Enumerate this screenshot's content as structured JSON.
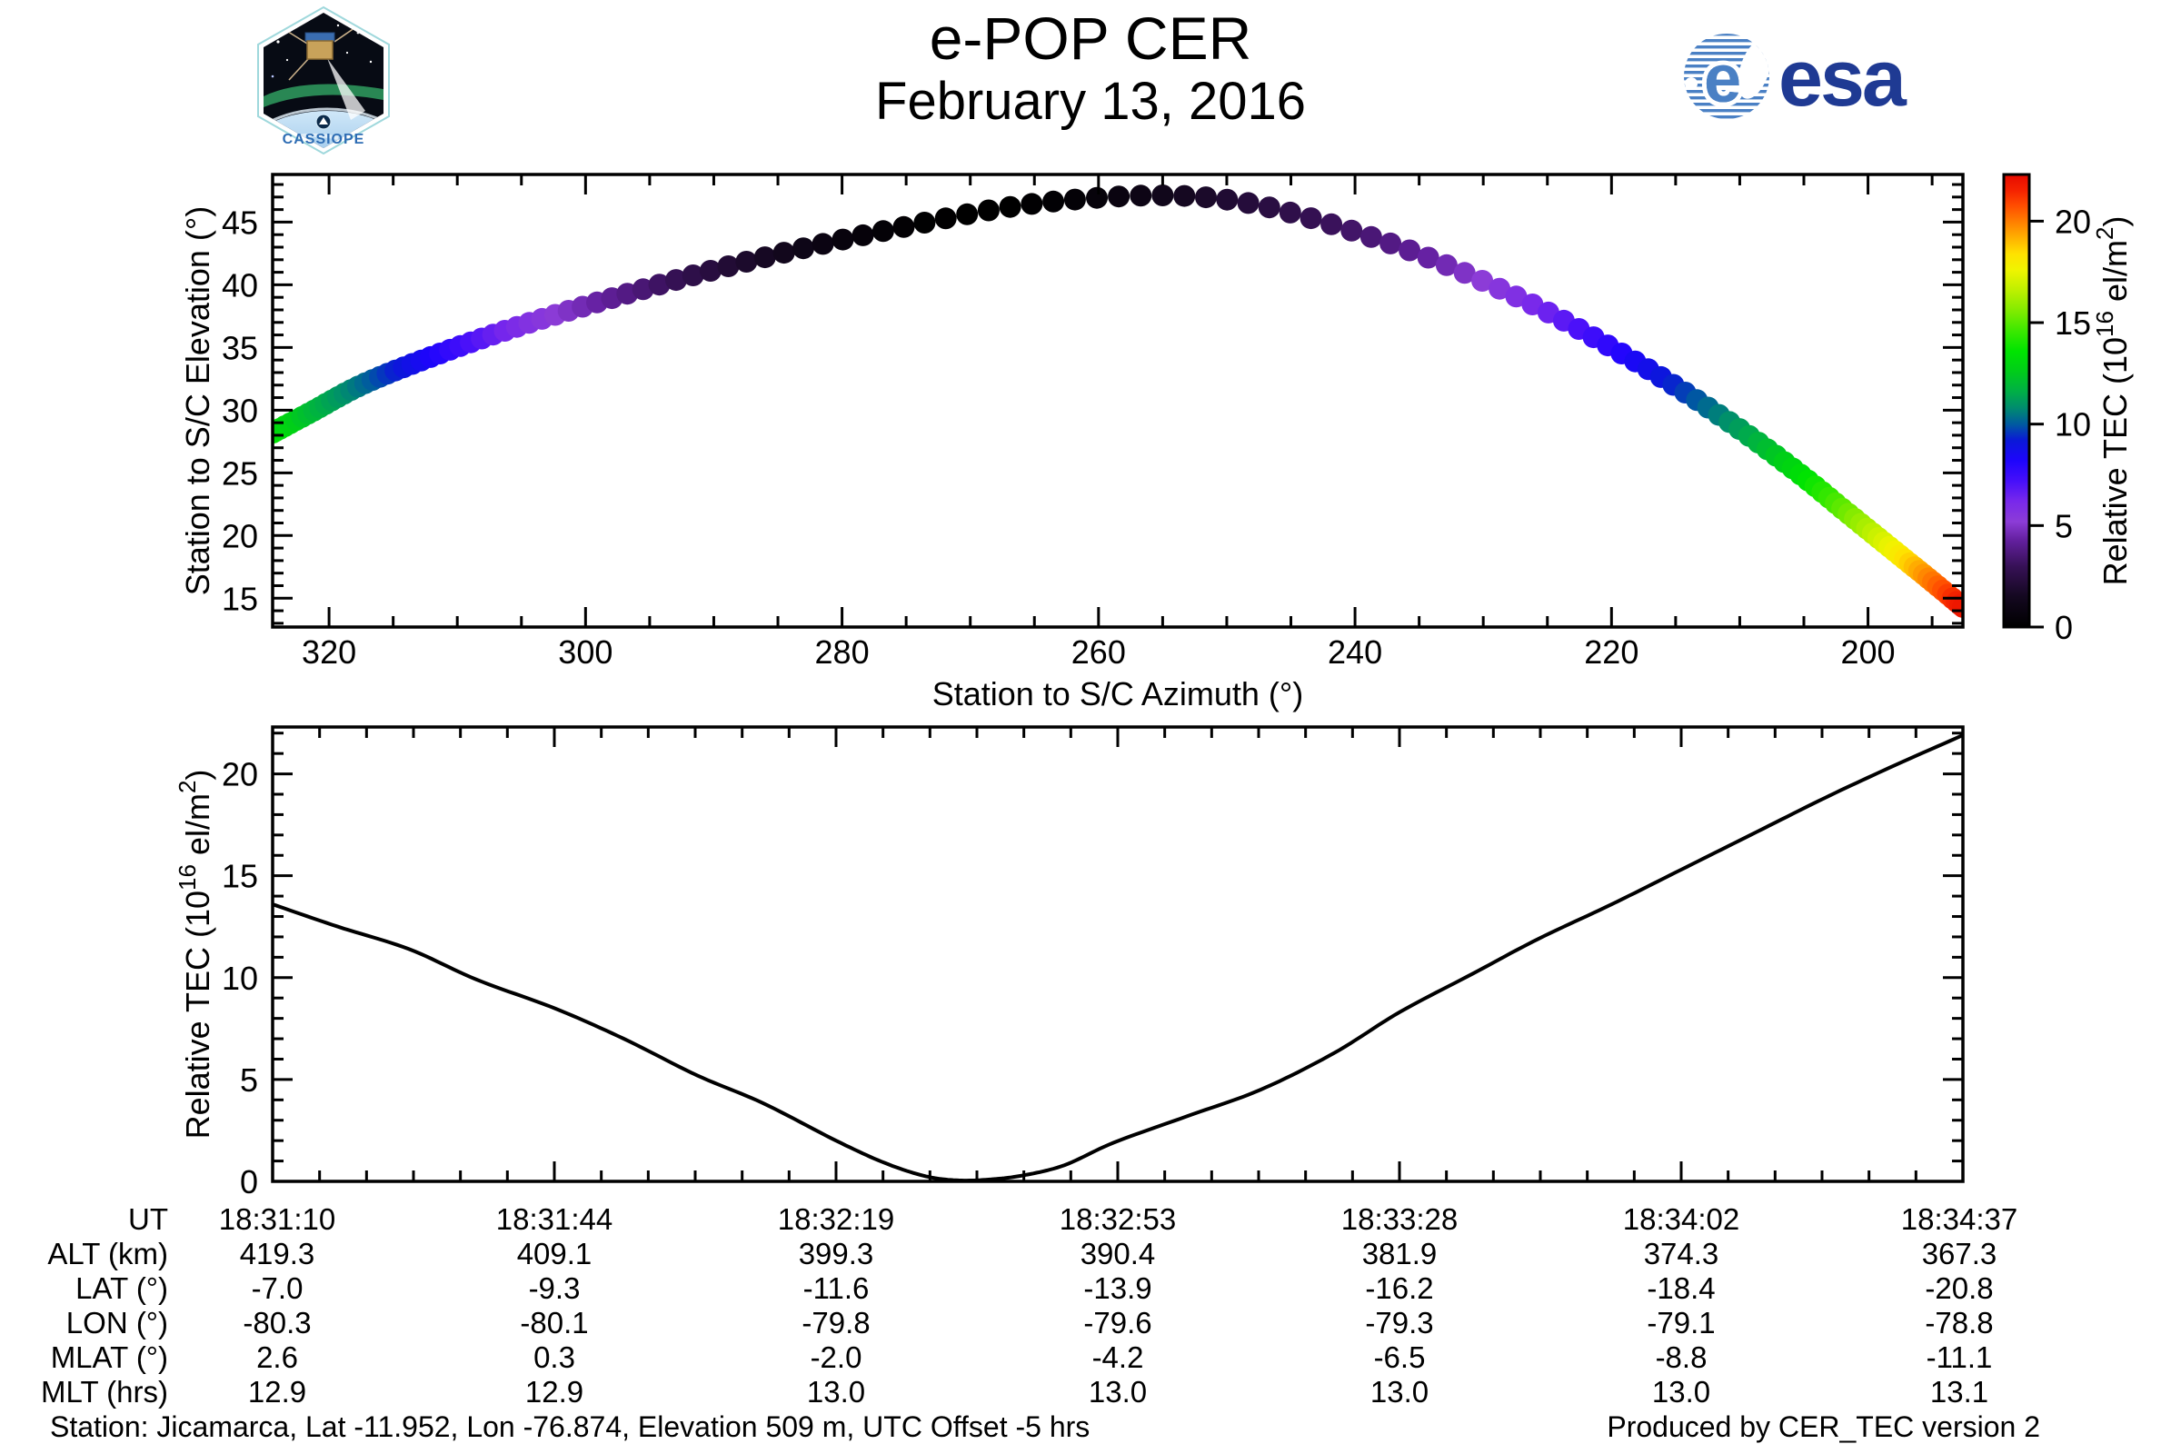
{
  "title": {
    "line1": "e-POP CER",
    "line2": "February 13, 2016"
  },
  "logos": {
    "esa_text": "esa",
    "cassiope_text": "CASSIOPE",
    "esa_blue": "#1f3a93",
    "esa_globe_blue": "#4a80c4",
    "cassiope_text_blue": "#2e6db4"
  },
  "footer": {
    "left": "Station: Jicamarca, Lat -11.952, Lon -76.874, Elevation 509 m, UTC Offset -5 hrs",
    "right": "Produced by CER_TEC version 2"
  },
  "colormap": {
    "max": 22.3,
    "stops": [
      [
        0,
        "#000000"
      ],
      [
        1.5,
        "#140820"
      ],
      [
        3,
        "#371157"
      ],
      [
        4.3,
        "#6420a0"
      ],
      [
        5.2,
        "#8c3cd7"
      ],
      [
        6.2,
        "#7828eb"
      ],
      [
        7.2,
        "#460ffa"
      ],
      [
        8.2,
        "#1e05fc"
      ],
      [
        9.2,
        "#0a19d7"
      ],
      [
        10,
        "#005aa0"
      ],
      [
        10.8,
        "#008c6e"
      ],
      [
        11.6,
        "#00af46"
      ],
      [
        12.6,
        "#00cd19"
      ],
      [
        13.6,
        "#00e400"
      ],
      [
        14.6,
        "#3ce800"
      ],
      [
        15.6,
        "#82eb00"
      ],
      [
        16.6,
        "#bef000"
      ],
      [
        17.6,
        "#f0f400"
      ],
      [
        18.4,
        "#ffe100"
      ],
      [
        19.2,
        "#ffaf00"
      ],
      [
        20,
        "#ff7d00"
      ],
      [
        20.8,
        "#ff4b00"
      ],
      [
        21.5,
        "#f52300"
      ],
      [
        22.3,
        "#e60a00"
      ]
    ]
  },
  "chart_data": [
    {
      "type": "scatter",
      "name": "elevation-vs-azimuth",
      "xlabel": "Station to S/C Azimuth (°)",
      "ylabel": "Station to S/C Elevation (°)",
      "xlim": [
        324.4,
        192.6
      ],
      "x_reversed": true,
      "ylim": [
        12.7,
        48.8
      ],
      "xticks": [
        320,
        300,
        280,
        260,
        240,
        220,
        200
      ],
      "xtick_minor_step": 5,
      "yticks": [
        15,
        20,
        25,
        30,
        35,
        40,
        45
      ],
      "ytick_minor_step": 1,
      "marker_radius_px": 12,
      "n_markers": 140,
      "series": {
        "comment": "satellite pass sampled vs time; markers colored by tec",
        "t_s": [
          0,
          11.5,
          23,
          34.5,
          46,
          57.5,
          69,
          80.5,
          92,
          103.5,
          115,
          126.5,
          138,
          149.5,
          161,
          172.5,
          184,
          195.5,
          207
        ],
        "azimuth_deg": [
          324.4,
          321.3,
          317.5,
          312.7,
          306.4,
          298.4,
          288.4,
          276.7,
          263.9,
          250.8,
          238.4,
          227.5,
          218.5,
          211.3,
          205.8,
          201.6,
          198.1,
          195.2,
          192.6
        ],
        "elevation_deg": [
          28.2,
          29.9,
          32.0,
          34.0,
          36.3,
          38.8,
          41.6,
          44.3,
          46.6,
          46.9,
          43.7,
          39.1,
          34.1,
          29.4,
          25.3,
          21.8,
          18.9,
          16.5,
          14.3
        ],
        "tec": [
          13.6,
          12.0,
          10.4,
          8.5,
          6.3,
          4.2,
          2.0,
          0.3,
          0.15,
          1.9,
          3.6,
          5.8,
          8.3,
          10.7,
          13.0,
          15.3,
          17.6,
          19.9,
          21.9
        ]
      },
      "colorbar": {
        "label_prefix": "Relative TEC (10",
        "label_sup1": "16",
        "label_mid": " el/m",
        "label_sup2": "2",
        "label_suffix": ")",
        "ticks": [
          0,
          5,
          10,
          15,
          20
        ],
        "range": [
          0,
          22.3
        ]
      }
    },
    {
      "type": "line",
      "name": "tec-vs-time",
      "ylabel_prefix": "Relative TEC (10",
      "ylabel_sup1": "16",
      "ylabel_mid": " el/m",
      "ylabel_sup2": "2",
      "ylabel_suffix": ")",
      "xlim_s": [
        0,
        207
      ],
      "ylim": [
        0,
        22.3
      ],
      "yticks": [
        0,
        5,
        10,
        15,
        20
      ],
      "ytick_minor_step": 1,
      "xtick_s": [
        0,
        34.5,
        69,
        103.5,
        138,
        172.5,
        207
      ],
      "xtick_labels": [
        "18:31:10",
        "18:31:44",
        "18:32:19",
        "18:32:53",
        "18:33:28",
        "18:34:02",
        "18:34:37"
      ],
      "x_minor_step_s": 5.75,
      "samples": {
        "t_s": [
          0,
          8,
          16.7,
          25,
          34.5,
          43,
          52,
          60,
          69,
          75,
          80,
          84,
          88,
          92,
          97,
          103,
          112,
          121,
          130,
          138,
          147,
          155,
          164,
          172.5,
          181,
          190,
          198,
          207
        ],
        "tec": [
          13.6,
          12.5,
          11.4,
          9.9,
          8.5,
          7.0,
          5.2,
          3.85,
          2.0,
          0.9,
          0.25,
          0.05,
          0.1,
          0.3,
          0.8,
          1.9,
          3.2,
          4.5,
          6.3,
          8.3,
          10.2,
          11.9,
          13.6,
          15.3,
          17.0,
          18.8,
          20.3,
          21.9
        ]
      }
    }
  ],
  "table": {
    "row_labels": [
      "UT",
      "ALT (km)",
      "LAT (°)",
      "LON (°)",
      "MLAT (°)",
      "MLT (hrs)"
    ],
    "columns": [
      [
        "18:31:10",
        "419.3",
        "-7.0",
        "-80.3",
        "2.6",
        "12.9"
      ],
      [
        "18:31:44",
        "409.1",
        "-9.3",
        "-80.1",
        "0.3",
        "12.9"
      ],
      [
        "18:32:19",
        "399.3",
        "-11.6",
        "-79.8",
        "-2.0",
        "13.0"
      ],
      [
        "18:32:53",
        "390.4",
        "-13.9",
        "-79.6",
        "-4.2",
        "13.0"
      ],
      [
        "18:33:28",
        "381.9",
        "-16.2",
        "-79.3",
        "-6.5",
        "13.0"
      ],
      [
        "18:34:02",
        "374.3",
        "-18.4",
        "-79.1",
        "-8.8",
        "13.0"
      ],
      [
        "18:34:37",
        "367.3",
        "-20.8",
        "-78.8",
        "-11.1",
        "13.1"
      ]
    ]
  }
}
